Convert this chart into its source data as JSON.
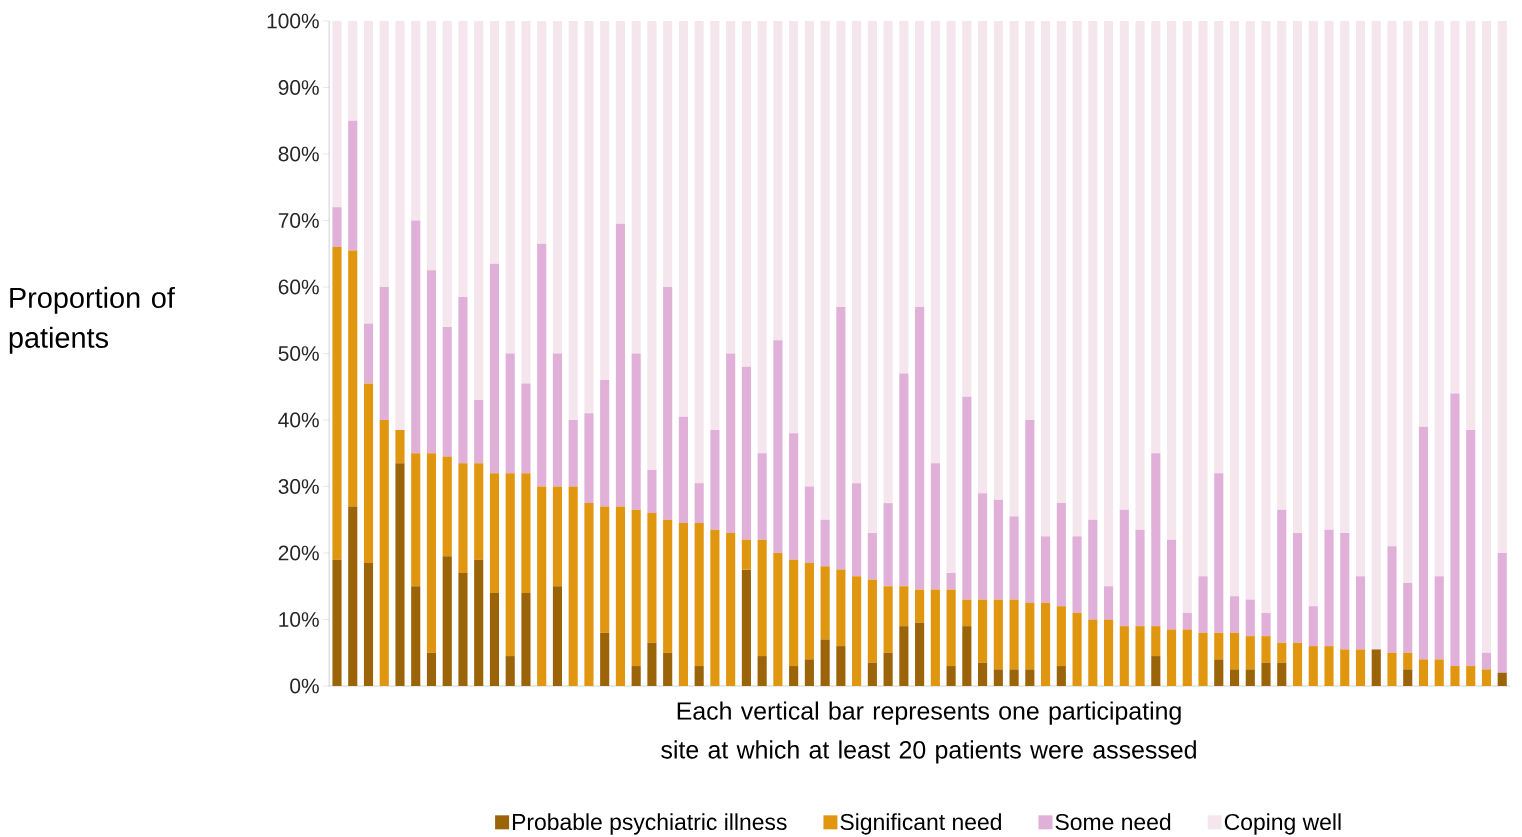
{
  "chart_data": {
    "type": "bar",
    "stacked": true,
    "ylabel": "Proportion of patients",
    "xlabel": "Each vertical bar represents one participating site at which at least 20 patients were assessed",
    "legend": "bottom",
    "categories": [
      null,
      null,
      null,
      null,
      null,
      null,
      null,
      null,
      null,
      null,
      null,
      null,
      null,
      null,
      null,
      null,
      null,
      null,
      null,
      null,
      null,
      null,
      null,
      null,
      null,
      null,
      null,
      null,
      null,
      null,
      null,
      null,
      null,
      null,
      null,
      null,
      null,
      null,
      null,
      null,
      null,
      null,
      null,
      null,
      null,
      null,
      null,
      null,
      null,
      null,
      null,
      null,
      null,
      null,
      null,
      null,
      null,
      null,
      null,
      null,
      null,
      null,
      null,
      null,
      null,
      null,
      null,
      null,
      null,
      null,
      null,
      null,
      null,
      null,
      null
    ],
    "ylim": [
      0,
      100
    ],
    "yticks": [
      {
        "value": 0,
        "label": "0%"
      },
      {
        "value": 10,
        "label": "10%"
      },
      {
        "value": 20,
        "label": "20%"
      },
      {
        "value": 30,
        "label": "30%"
      },
      {
        "value": 40,
        "label": "40%"
      },
      {
        "value": 50,
        "label": "50%"
      },
      {
        "value": 60,
        "label": "60%"
      },
      {
        "value": 70,
        "label": "70%"
      },
      {
        "value": 80,
        "label": "80%"
      },
      {
        "value": 90,
        "label": "90%"
      },
      {
        "value": 100,
        "label": "100%"
      }
    ],
    "series": [
      {
        "name": "Probable psychiatric illness",
        "color": "#9c6408",
        "values": [
          19,
          27,
          18.5,
          0,
          33.5,
          15,
          5,
          19.5,
          17,
          19,
          14,
          4.5,
          14,
          0,
          15,
          0,
          0,
          8,
          0,
          3,
          6.5,
          5,
          0,
          3,
          0,
          0,
          17.5,
          4.5,
          0,
          3,
          4,
          7,
          6,
          0,
          3.5,
          5,
          9,
          9.5,
          0,
          3,
          9,
          3.5,
          2.5,
          2.5,
          2.5,
          0,
          3,
          0,
          0,
          0,
          0,
          0,
          4.5,
          0,
          0,
          0,
          4,
          2.5,
          2.5,
          3.5,
          3.5,
          0,
          0,
          0,
          0,
          0,
          5.5,
          0,
          2.5,
          0,
          0,
          0,
          0,
          0,
          2
        ]
      },
      {
        "name": "Significant need",
        "color": "#e0960e",
        "values": [
          47,
          38.5,
          27,
          40,
          5,
          20,
          30,
          15,
          16.5,
          14.5,
          18,
          27.5,
          18,
          30,
          15,
          30,
          27.5,
          19,
          27,
          23.5,
          19.5,
          20,
          24.5,
          21.5,
          23.5,
          23,
          4.5,
          17.5,
          20,
          16,
          14.5,
          11,
          11.5,
          16.5,
          12.5,
          10,
          6,
          5,
          14.5,
          11.5,
          4,
          9.5,
          10.5,
          10.5,
          10,
          12.5,
          9,
          11,
          10,
          10,
          9,
          9,
          4.5,
          8.5,
          8.5,
          8,
          4,
          5.5,
          5,
          4,
          3,
          6.5,
          6,
          6,
          5.5,
          5.5,
          0,
          5,
          2.5,
          4,
          4,
          3,
          3,
          2.5,
          0
        ]
      },
      {
        "name": "Some need",
        "color": "#e0b0d8",
        "values": [
          6,
          19.5,
          9,
          20,
          0,
          35,
          27.5,
          19.5,
          25,
          9.5,
          31.5,
          18,
          13.5,
          36.5,
          20,
          10,
          13.5,
          19,
          42.5,
          23.5,
          6.5,
          35,
          16,
          6,
          15,
          27,
          26,
          13,
          32,
          19,
          11.5,
          7,
          39.5,
          14,
          7,
          12.5,
          32,
          42.5,
          19,
          2.5,
          30.5,
          16,
          15,
          12.5,
          27.5,
          10,
          15.5,
          11.5,
          15,
          5,
          17.5,
          14.5,
          26,
          13.5,
          2.5,
          8.5,
          24,
          5.5,
          5.5,
          3.5,
          20,
          16.5,
          6,
          17.5,
          17.5,
          11,
          0,
          16,
          10.5,
          35,
          12.5,
          41,
          35.5,
          2.5,
          18
        ]
      },
      {
        "name": "Coping well",
        "color": "#f5e6ee",
        "values": [
          28,
          15,
          45.5,
          40,
          61.5,
          30,
          37.5,
          46,
          41.5,
          57,
          36.5,
          50,
          54.5,
          33.5,
          50,
          60,
          59,
          54,
          30.5,
          50,
          67.5,
          40,
          59.5,
          69.5,
          61.5,
          50,
          52,
          65,
          48,
          62,
          70,
          75,
          43,
          69.5,
          77,
          72.5,
          53,
          43,
          66.5,
          83,
          56.5,
          71,
          72,
          74.5,
          60,
          77.5,
          72.5,
          77.5,
          75,
          85,
          73.5,
          76.5,
          65,
          78,
          89,
          83.5,
          68,
          86.5,
          87,
          89,
          73.5,
          77,
          88,
          76.5,
          77,
          83.5,
          94.5,
          79,
          84.5,
          61,
          83.5,
          56,
          61.5,
          95,
          80
        ]
      }
    ]
  }
}
